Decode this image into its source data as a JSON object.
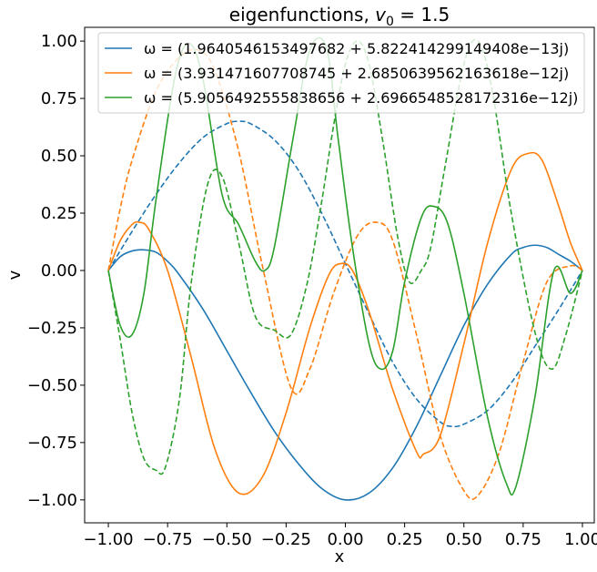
{
  "chart_data": {
    "type": "line",
    "title_main": "eigenfunctions, ",
    "title_math": "v",
    "title_sub": "0",
    "title_tail": " = 1.5",
    "xlabel": "x",
    "ylabel": "v",
    "xlim": [
      -1.1,
      1.05
    ],
    "ylim": [
      -1.1,
      1.06
    ],
    "xticks": [
      -1.0,
      -0.75,
      -0.5,
      -0.25,
      0.0,
      0.25,
      0.5,
      0.75,
      1.0
    ],
    "xtick_labels": [
      "−1.00",
      "−0.75",
      "−0.50",
      "−0.25",
      "0.00",
      "0.25",
      "0.50",
      "0.75",
      "1.00"
    ],
    "yticks": [
      -1.0,
      -0.75,
      -0.5,
      -0.25,
      0.0,
      0.25,
      0.5,
      0.75,
      1.0
    ],
    "ytick_labels": [
      "−1.00",
      "−0.75",
      "−0.50",
      "−0.25",
      "0.00",
      "0.25",
      "0.50",
      "0.75",
      "1.00"
    ],
    "grid": false,
    "legend_position": "top-right",
    "series": [
      {
        "name": "ω = (1.9640546153497682 + 5.822414299149408e−13j)",
        "color": "#1f77b4",
        "solid": {
          "x": [
            -1.0,
            -0.95,
            -0.9,
            -0.85,
            -0.8,
            -0.75,
            -0.7,
            -0.6,
            -0.5,
            -0.4,
            -0.3,
            -0.2,
            -0.1,
            0.0,
            0.1,
            0.2,
            0.3,
            0.4,
            0.5,
            0.6,
            0.7,
            0.75,
            0.8,
            0.85,
            0.9,
            0.95,
            1.0
          ],
          "y": [
            0.0,
            0.06,
            0.085,
            0.09,
            0.08,
            0.04,
            -0.02,
            -0.17,
            -0.35,
            -0.53,
            -0.7,
            -0.84,
            -0.95,
            -1.0,
            -0.97,
            -0.86,
            -0.68,
            -0.46,
            -0.24,
            -0.06,
            0.07,
            0.1,
            0.11,
            0.1,
            0.07,
            0.04,
            0.0
          ]
        },
        "dashed": {
          "x": [
            -1.0,
            -0.9,
            -0.8,
            -0.7,
            -0.6,
            -0.5,
            -0.45,
            -0.4,
            -0.3,
            -0.2,
            -0.1,
            0.0,
            0.1,
            0.2,
            0.3,
            0.4,
            0.45,
            0.5,
            0.6,
            0.7,
            0.8,
            0.9,
            1.0
          ],
          "y": [
            0.0,
            0.17,
            0.33,
            0.47,
            0.58,
            0.64,
            0.65,
            0.64,
            0.57,
            0.44,
            0.25,
            0.03,
            -0.19,
            -0.4,
            -0.56,
            -0.66,
            -0.68,
            -0.67,
            -0.61,
            -0.49,
            -0.33,
            -0.17,
            0.0
          ]
        }
      },
      {
        "name": "ω = (3.931471607708745 + 2.6850639562163618e−12j)",
        "color": "#ff7f0e",
        "solid": {
          "x": [
            -1.0,
            -0.95,
            -0.9,
            -0.87,
            -0.83,
            -0.75,
            -0.65,
            -0.55,
            -0.45,
            -0.35,
            -0.25,
            -0.15,
            -0.07,
            -0.02,
            0.03,
            0.1,
            0.2,
            0.3,
            0.33,
            0.4,
            0.5,
            0.6,
            0.7,
            0.77,
            0.83,
            0.9,
            0.95,
            1.0
          ],
          "y": [
            0.0,
            0.13,
            0.2,
            0.21,
            0.18,
            0.0,
            -0.38,
            -0.78,
            -0.97,
            -0.9,
            -0.62,
            -0.25,
            -0.02,
            0.03,
            0.0,
            -0.18,
            -0.52,
            -0.79,
            -0.8,
            -0.72,
            -0.32,
            0.12,
            0.44,
            0.51,
            0.48,
            0.28,
            0.12,
            0.0
          ]
        },
        "dashed": {
          "x": [
            -1.0,
            -0.95,
            -0.9,
            -0.8,
            -0.7,
            -0.62,
            -0.55,
            -0.45,
            -0.35,
            -0.23,
            -0.15,
            -0.05,
            0.05,
            0.13,
            0.2,
            0.3,
            0.4,
            0.5,
            0.56,
            0.65,
            0.75,
            0.85,
            0.95,
            1.0
          ],
          "y": [
            0.0,
            0.27,
            0.48,
            0.78,
            0.93,
            0.96,
            0.87,
            0.52,
            0.02,
            -0.51,
            -0.43,
            -0.1,
            0.15,
            0.21,
            0.13,
            -0.28,
            -0.72,
            -0.96,
            -0.98,
            -0.79,
            -0.4,
            -0.05,
            0.02,
            0.0
          ]
        }
      },
      {
        "name": "ω = (5.9056492555838656 + 2.6966548528172316e−12j)",
        "color": "#2ca02c",
        "solid": {
          "x": [
            -1.0,
            -0.95,
            -0.9,
            -0.85,
            -0.8,
            -0.72,
            -0.66,
            -0.6,
            -0.52,
            -0.45,
            -0.38,
            -0.34,
            -0.3,
            -0.22,
            -0.15,
            -0.08,
            -0.03,
            0.03,
            0.1,
            0.15,
            0.2,
            0.25,
            0.32,
            0.37,
            0.43,
            0.5,
            0.6,
            0.68,
            0.72,
            0.8,
            0.88,
            0.95,
            1.0
          ],
          "y": [
            0.0,
            -0.24,
            -0.28,
            -0.1,
            0.3,
            0.84,
            0.99,
            0.83,
            0.33,
            0.2,
            0.04,
            0.0,
            0.1,
            0.58,
            0.96,
            0.97,
            0.57,
            0.1,
            -0.32,
            -0.43,
            -0.35,
            -0.05,
            0.23,
            0.28,
            0.21,
            -0.1,
            -0.64,
            -0.93,
            -0.94,
            -0.55,
            0.0,
            -0.1,
            0.0
          ]
        },
        "dashed": {
          "x": [
            -1.0,
            -0.95,
            -0.9,
            -0.85,
            -0.8,
            -0.76,
            -0.7,
            -0.65,
            -0.58,
            -0.52,
            -0.45,
            -0.38,
            -0.3,
            -0.23,
            -0.16,
            -0.1,
            -0.05,
            0.0,
            0.05,
            0.1,
            0.16,
            0.22,
            0.27,
            0.32,
            0.36,
            0.42,
            0.5,
            0.56,
            0.62,
            0.7,
            0.8,
            0.87,
            0.93,
            1.0
          ],
          "y": [
            0.0,
            -0.3,
            -0.62,
            -0.82,
            -0.87,
            -0.86,
            -0.56,
            -0.05,
            0.38,
            0.41,
            0.12,
            -0.2,
            -0.26,
            -0.28,
            -0.05,
            0.3,
            0.63,
            0.9,
            1.0,
            0.9,
            0.55,
            0.15,
            -0.05,
            0.0,
            0.1,
            0.45,
            0.9,
            1.0,
            0.78,
            0.25,
            -0.27,
            -0.43,
            -0.28,
            0.0
          ]
        }
      }
    ]
  }
}
